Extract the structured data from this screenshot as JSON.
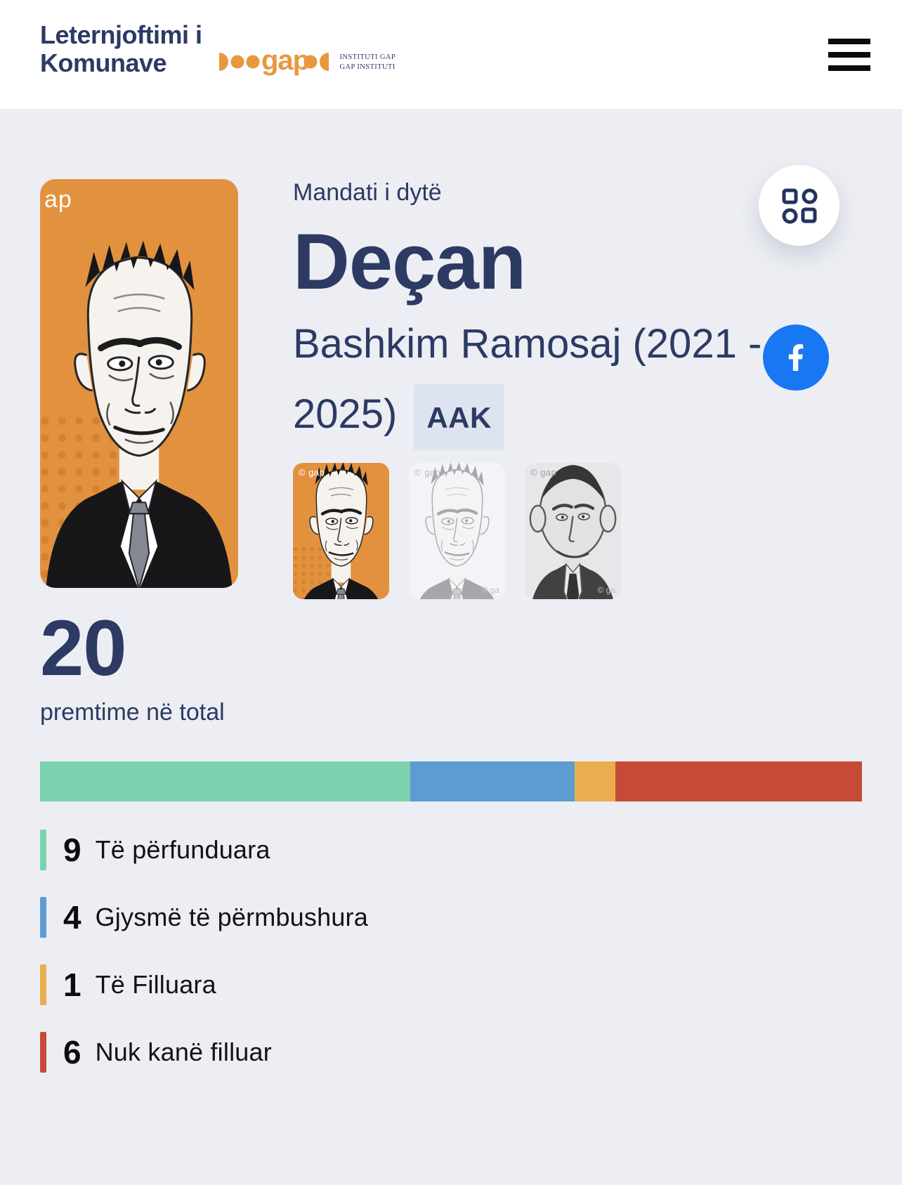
{
  "header": {
    "site_title_line1": "Leternjoftimi i",
    "site_title_line2": "Komunave",
    "gap_logo_text": "gap",
    "gap_caption_line1": "INSTITUTI GAP",
    "gap_caption_line2": "GAP INSTITUTI"
  },
  "hero": {
    "mandate_label": "Mandati i dytë",
    "municipality": "Deçan",
    "mayor": "Bashkim Ramosaj (2021 - 2025)",
    "party": "AAK",
    "portrait_watermark": "ap",
    "thumb_watermark": "© gap",
    "thumb_watermark_corner": "© ga"
  },
  "icons": {
    "menu": "hamburger-icon",
    "apps": "grid-icon",
    "facebook": "facebook-icon"
  },
  "stats": {
    "total": "20",
    "total_label": "premtime në total"
  },
  "chart_data": {
    "type": "bar",
    "stacked": true,
    "title": "premtime në total",
    "total": 20,
    "categories": [
      "Të përfunduara",
      "Gjysmë të përmbushura",
      "Të Filluara",
      "Nuk kanë filluar"
    ],
    "values": [
      9,
      4,
      1,
      6
    ],
    "colors": [
      "#7cd1ae",
      "#5c9cd1",
      "#eaae4e",
      "#c54b37"
    ],
    "legend_position": "below",
    "axis": "none"
  },
  "colors": {
    "navy": "#2c3a64",
    "page_bg": "#eceef3",
    "header_bg": "#ffffff",
    "card_orange": "#e2923e",
    "badge_bg": "#dee3f0",
    "facebook_blue": "#1877f2"
  }
}
